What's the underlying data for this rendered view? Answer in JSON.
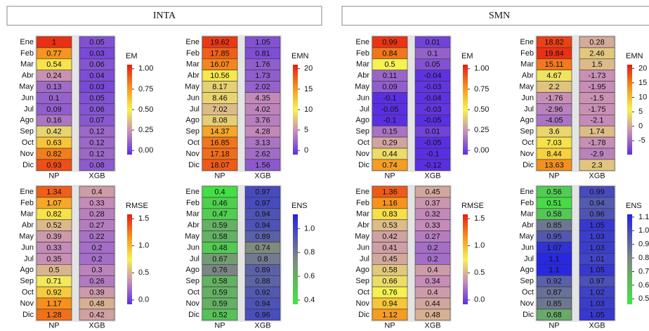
{
  "panels": [
    {
      "title": "INTA"
    },
    {
      "title": "SMN"
    }
  ],
  "chart_data": [
    {
      "type": "heatmap",
      "categories": [
        "Ene",
        "Feb",
        "Mar",
        "Abr",
        "May",
        "Jun",
        "Jul",
        "Ago",
        "Sep",
        "Oct",
        "Nov",
        "Dic"
      ],
      "series": [
        {
          "name": "NP",
          "values": [
            1,
            0.77,
            0.54,
            0.24,
            0.13,
            0.1,
            0.09,
            0.16,
            0.42,
            0.63,
            0.82,
            0.93
          ]
        },
        {
          "name": "XGB",
          "values": [
            0.05,
            0.03,
            0.06,
            0.04,
            0.03,
            0.05,
            0.06,
            0.07,
            0.12,
            0.12,
            0.12,
            0.08
          ]
        }
      ],
      "colorbar": {
        "label": "EM",
        "lim": [
          -0.05,
          1.05
        ],
        "ticks": [
          {
            "value": 0,
            "label": "0.00"
          },
          {
            "value": 0.25,
            "label": "0.25"
          },
          {
            "value": 0.5,
            "label": "0.50"
          },
          {
            "value": 0.75,
            "label": "0.75"
          },
          {
            "value": 1,
            "label": "1.00"
          }
        ],
        "colors": [
          "#5a2fe2",
          "#c68cb8",
          "#f6f252",
          "#f5921e",
          "#e81a12"
        ]
      }
    },
    {
      "type": "heatmap",
      "categories": [
        "Ene",
        "Feb",
        "Mar",
        "Abr",
        "May",
        "Jun",
        "Jul",
        "Ago",
        "Sep",
        "Oct",
        "Nov",
        "Dic"
      ],
      "series": [
        {
          "name": "NP",
          "values": [
            19.62,
            17.85,
            16.07,
            10.56,
            8.17,
            8.46,
            7.02,
            8.08,
            14.37,
            16.85,
            17.18,
            18.07
          ]
        },
        {
          "name": "XGB",
          "values": [
            1.05,
            0.81,
            1.76,
            1.73,
            2.02,
            4.35,
            4.02,
            3.76,
            4.28,
            3.13,
            2.62,
            1.56
          ]
        }
      ],
      "colorbar": {
        "label": "EMN",
        "lim": [
          -1,
          21
        ],
        "ticks": [
          0,
          5,
          10,
          15,
          20
        ],
        "colors": [
          "#5a2fe2",
          "#c68cb8",
          "#f6f252",
          "#f5921e",
          "#e81a12"
        ]
      }
    },
    {
      "type": "heatmap",
      "categories": [
        "Ene",
        "Feb",
        "Mar",
        "Abr",
        "May",
        "Jun",
        "Jul",
        "Ago",
        "Sep",
        "Oct",
        "Nov",
        "Dic"
      ],
      "series": [
        {
          "name": "NP",
          "values": [
            1.34,
            1.07,
            0.82,
            0.52,
            0.39,
            0.33,
            0.35,
            0.5,
            0.71,
            0.92,
            1.17,
            1.28
          ]
        },
        {
          "name": "XGB",
          "values": [
            0.4,
            0.33,
            0.28,
            0.27,
            0.22,
            0.2,
            0.2,
            0.3,
            0.26,
            0.39,
            0.48,
            0.42
          ]
        }
      ],
      "colorbar": {
        "label": "RMSE",
        "lim": [
          -0.08,
          1.58
        ],
        "ticks": [
          {
            "value": 0,
            "label": "0.0"
          },
          0.5,
          {
            "value": 1,
            "label": "1.0"
          },
          1.5
        ],
        "colors": [
          "#5a2fe2",
          "#c68cb8",
          "#f6f252",
          "#f5921e",
          "#e81a12"
        ]
      }
    },
    {
      "type": "heatmap",
      "categories": [
        "Ene",
        "Feb",
        "Mar",
        "Abr",
        "May",
        "Jun",
        "Jul",
        "Ago",
        "Sep",
        "Oct",
        "Nov",
        "Dic"
      ],
      "series": [
        {
          "name": "NP",
          "values": [
            0.4,
            0.46,
            0.47,
            0.59,
            0.58,
            0.48,
            0.67,
            0.76,
            0.58,
            0.59,
            0.59,
            0.52
          ]
        },
        {
          "name": "XGB",
          "values": [
            0.97,
            0.97,
            0.94,
            0.94,
            0.89,
            0.74,
            0.8,
            0.89,
            0.88,
            0.92,
            0.94,
            0.96
          ]
        }
      ],
      "colorbar": {
        "label": "ENS",
        "lim": [
          0.365,
          1.12
        ],
        "ticks": [
          0.4,
          0.6,
          0.8,
          {
            "value": 1,
            "label": "1.0"
          }
        ],
        "colors": [
          "#3ee83e",
          "#7f8a7f",
          "#2222e6"
        ]
      }
    },
    {
      "type": "heatmap",
      "categories": [
        "Ene",
        "Feb",
        "Mar",
        "Abr",
        "May",
        "Jun",
        "Jul",
        "Ago",
        "Sep",
        "Oct",
        "Nov",
        "Dic"
      ],
      "series": [
        {
          "name": "NP",
          "values": [
            0.99,
            0.84,
            0.5,
            0.11,
            0.09,
            -0.1,
            -0.05,
            -0.1,
            0.15,
            0.29,
            0.44,
            0.74
          ]
        },
        {
          "name": "XGB",
          "values": [
            0.01,
            0.1,
            0.05,
            -0.04,
            -0.03,
            -0.04,
            -0.03,
            -0.05,
            0.01,
            -0.05,
            -0.1,
            -0.12
          ]
        }
      ],
      "colorbar": {
        "label": "EM",
        "lim": [
          -0.05,
          1.05
        ],
        "ticks": [
          {
            "value": 0,
            "label": "0.00"
          },
          {
            "value": 0.25,
            "label": "0.25"
          },
          {
            "value": 0.5,
            "label": "0.50"
          },
          {
            "value": 0.75,
            "label": "0.75"
          },
          {
            "value": 1,
            "label": "1.00"
          }
        ],
        "colors": [
          "#5a2fe2",
          "#c68cb8",
          "#f6f252",
          "#f5921e",
          "#e81a12"
        ]
      }
    },
    {
      "type": "heatmap",
      "categories": [
        "Ene",
        "Feb",
        "Mar",
        "Abr",
        "May",
        "Jun",
        "Jul",
        "Ago",
        "Sep",
        "Oct",
        "Nov",
        "Dic"
      ],
      "series": [
        {
          "name": "NP",
          "values": [
            18.82,
            19.84,
            15.11,
            4.67,
            2.2,
            -1.76,
            -2.96,
            -4.05,
            3.6,
            7.03,
            8.44,
            13.63
          ]
        },
        {
          "name": "XGB",
          "values": [
            0.28,
            2.46,
            1.5,
            -1.73,
            -1.95,
            -1.5,
            -1.75,
            -2.1,
            1.74,
            -1.78,
            -2.9,
            2.3
          ]
        }
      ],
      "colorbar": {
        "label": "EMN",
        "lim": [
          -9.8,
          21.3
        ],
        "ticks": [
          -5,
          0,
          5,
          10,
          15,
          20
        ],
        "colors": [
          "#5a2fe2",
          "#c68cb8",
          "#f6f252",
          "#f5921e",
          "#e81a12"
        ]
      }
    },
    {
      "type": "heatmap",
      "categories": [
        "Ene",
        "Feb",
        "Mar",
        "Abr",
        "May",
        "Jun",
        "Jul",
        "Ago",
        "Sep",
        "Oct",
        "Nov",
        "Dic"
      ],
      "series": [
        {
          "name": "NP",
          "values": [
            1.36,
            1.16,
            0.83,
            0.53,
            0.42,
            0.41,
            0.45,
            0.58,
            0.66,
            0.76,
            0.94,
            1.12
          ]
        },
        {
          "name": "XGB",
          "values": [
            0.45,
            0.37,
            0.32,
            0.33,
            0.27,
            0.2,
            0.2,
            0.4,
            0.34,
            0.4,
            0.44,
            0.48
          ]
        }
      ],
      "colorbar": {
        "label": "RMSE",
        "lim": [
          -0.08,
          1.58
        ],
        "ticks": [
          {
            "value": 0,
            "label": "0.0"
          },
          0.5,
          {
            "value": 1,
            "label": "1.0"
          },
          1.5
        ],
        "colors": [
          "#5a2fe2",
          "#c68cb8",
          "#f6f252",
          "#f5921e",
          "#e81a12"
        ]
      }
    },
    {
      "type": "heatmap",
      "categories": [
        "Ene",
        "Feb",
        "Mar",
        "Abr",
        "May",
        "Jun",
        "Jul",
        "Ago",
        "Sep",
        "Oct",
        "Nov",
        "Dic"
      ],
      "series": [
        {
          "name": "NP",
          "values": [
            0.56,
            0.51,
            0.58,
            0.85,
            0.95,
            1.07,
            1.1,
            1.1,
            0.92,
            0.87,
            0.85,
            0.68
          ]
        },
        {
          "name": "XGB",
          "values": [
            0.99,
            0.94,
            0.96,
            1.05,
            1.03,
            1.03,
            1.01,
            1.05,
            0.97,
            1.02,
            1.03,
            1.05
          ]
        }
      ],
      "colorbar": {
        "label": "ENS",
        "lim": [
          0.46,
          1.12
        ],
        "ticks": [
          0.5,
          0.6,
          0.7,
          0.8,
          0.9,
          {
            "value": 1,
            "label": "1.0"
          },
          1.1
        ],
        "colors": [
          "#3ee83e",
          "#7f8a7f",
          "#2222e6"
        ]
      }
    }
  ]
}
